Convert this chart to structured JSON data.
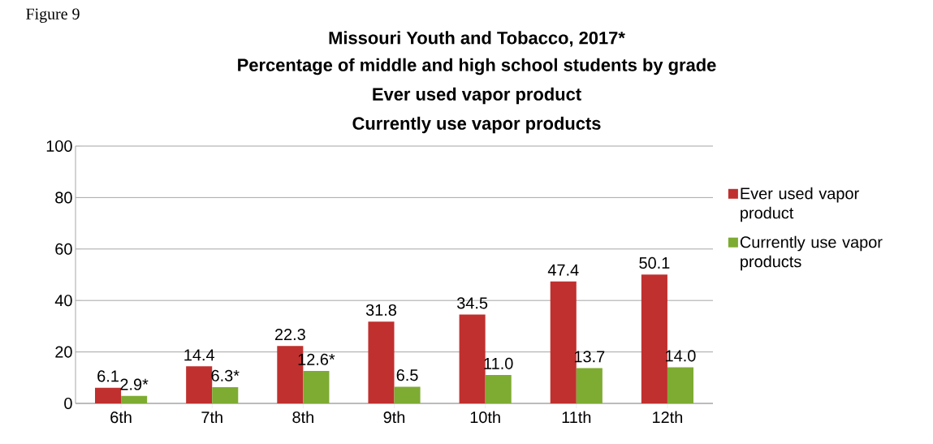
{
  "chart_data": {
    "type": "bar",
    "title": "Missouri Youth and Tobacco, 2017*",
    "subtitle": "Percentage of middle and high school students by grade",
    "annotations": [
      "Figure 9",
      "Ever used vapor product",
      "Currently use vapor products"
    ],
    "categories": [
      "6th",
      "7th",
      "8th",
      "9th",
      "10th",
      "11th",
      "12th"
    ],
    "series": [
      {
        "name": "Ever used vapor product",
        "color": "#c0302e",
        "values": [
          6.1,
          14.4,
          22.3,
          31.8,
          34.5,
          47.4,
          50.1
        ],
        "value_labels": [
          "6.1",
          "14.4",
          "22.3",
          "31.8",
          "34.5",
          "47.4",
          "50.1"
        ]
      },
      {
        "name": "Currently use vapor products",
        "color": "#7eab32",
        "values": [
          2.9,
          6.3,
          12.6,
          6.5,
          11.0,
          13.7,
          14.0
        ],
        "value_labels": [
          "2.9*",
          "6.3*",
          "12.6*",
          "6.5",
          "11.0",
          "13.7",
          "14.0"
        ]
      }
    ],
    "ylim": [
      0,
      100
    ],
    "yticks": [
      0,
      20,
      40,
      60,
      80,
      100
    ],
    "grid": "y",
    "legend": "right"
  }
}
